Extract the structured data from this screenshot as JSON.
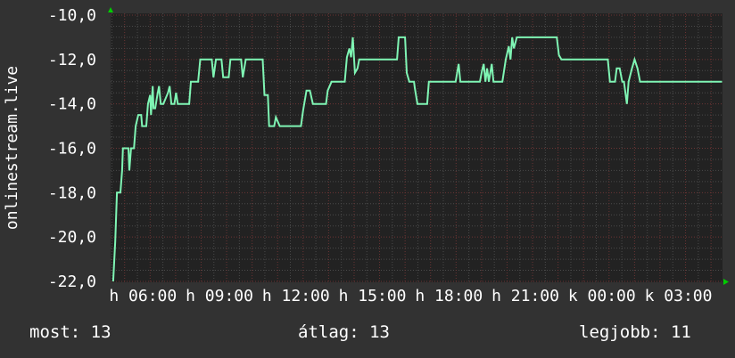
{
  "chart_data": {
    "type": "line",
    "ylabel": "onlinestream.live",
    "ylim": [
      -22,
      -10
    ],
    "xlim": [
      "04:27",
      "04:27"
    ],
    "y_ticks": [
      "-10,0",
      "-12,0",
      "-14,0",
      "-16,0",
      "-18,0",
      "-20,0",
      "-22,0"
    ],
    "x_ticks": [
      {
        "time": "06:00",
        "label": "h 06:00"
      },
      {
        "time": "09:00",
        "label": "h 09:00"
      },
      {
        "time": "12:00",
        "label": "h 12:00"
      },
      {
        "time": "15:00",
        "label": "h 15:00"
      },
      {
        "time": "18:00",
        "label": "h 18:00"
      },
      {
        "time": "21:00",
        "label": "h 21:00"
      },
      {
        "time": "00:00",
        "label": "k 00:00"
      },
      {
        "time": "03:00",
        "label": "k 03:00"
      }
    ],
    "grid": true,
    "colors": {
      "background": "#323232",
      "plot": "#222222",
      "line": "#7ff5b4",
      "major_grid": "#6b3434",
      "minor_grid": "#4a4a4a",
      "arrow": "#00cc00"
    },
    "series": [
      {
        "points": [
          [
            "04:33",
            -22
          ],
          [
            "04:38",
            -20.2
          ],
          [
            "04:42",
            -18
          ],
          [
            "04:50",
            -18
          ],
          [
            "04:54",
            -17
          ],
          [
            "04:56",
            -16
          ],
          [
            "05:09",
            -16
          ],
          [
            "05:11",
            -17
          ],
          [
            "05:15",
            -16
          ],
          [
            "05:22",
            -16
          ],
          [
            "05:26",
            -15
          ],
          [
            "05:32",
            -14.5
          ],
          [
            "05:39",
            -14.5
          ],
          [
            "05:41",
            -15
          ],
          [
            "05:51",
            -15
          ],
          [
            "05:55",
            -14
          ],
          [
            "06:00",
            -13.6
          ],
          [
            "06:02",
            -14.5
          ],
          [
            "06:06",
            -13.2
          ],
          [
            "06:08",
            -14.2
          ],
          [
            "06:12",
            -14.2
          ],
          [
            "06:17",
            -13.6
          ],
          [
            "06:21",
            -13.2
          ],
          [
            "06:25",
            -14
          ],
          [
            "06:31",
            -14
          ],
          [
            "06:42",
            -13.5
          ],
          [
            "06:46",
            -13.2
          ],
          [
            "06:50",
            -14
          ],
          [
            "06:57",
            -14
          ],
          [
            "07:01",
            -13.5
          ],
          [
            "07:05",
            -14
          ],
          [
            "07:32",
            -14
          ],
          [
            "07:36",
            -13
          ],
          [
            "07:53",
            -13
          ],
          [
            "07:58",
            -12
          ],
          [
            "08:25",
            -12
          ],
          [
            "08:29",
            -12.8
          ],
          [
            "08:35",
            -12
          ],
          [
            "08:48",
            -12
          ],
          [
            "08:52",
            -12.8
          ],
          [
            "09:05",
            -12.8
          ],
          [
            "09:09",
            -12
          ],
          [
            "09:34",
            -12
          ],
          [
            "09:38",
            -12.8
          ],
          [
            "09:45",
            -12
          ],
          [
            "10:25",
            -12
          ],
          [
            "10:29",
            -13.6
          ],
          [
            "10:37",
            -13.6
          ],
          [
            "10:40",
            -15
          ],
          [
            "10:52",
            -15
          ],
          [
            "10:56",
            -14.6
          ],
          [
            "11:05",
            -15
          ],
          [
            "11:55",
            -15
          ],
          [
            "12:00",
            -14.3
          ],
          [
            "12:08",
            -13.4
          ],
          [
            "12:16",
            -13.4
          ],
          [
            "12:23",
            -14
          ],
          [
            "12:54",
            -14
          ],
          [
            "12:58",
            -13.4
          ],
          [
            "13:07",
            -13
          ],
          [
            "13:38",
            -13
          ],
          [
            "13:43",
            -11.9
          ],
          [
            "13:49",
            -11.5
          ],
          [
            "13:53",
            -11.9
          ],
          [
            "13:57",
            -11
          ],
          [
            "14:02",
            -12.6
          ],
          [
            "14:08",
            -12.4
          ],
          [
            "14:12",
            -12
          ],
          [
            "15:41",
            -12
          ],
          [
            "15:45",
            -11
          ],
          [
            "16:00",
            -11
          ],
          [
            "16:04",
            -12.6
          ],
          [
            "16:10",
            -13
          ],
          [
            "16:21",
            -13
          ],
          [
            "16:23",
            -13.3
          ],
          [
            "16:29",
            -14
          ],
          [
            "16:52",
            -14
          ],
          [
            "16:56",
            -13
          ],
          [
            "17:59",
            -13
          ],
          [
            "18:06",
            -12.2
          ],
          [
            "18:10",
            -13
          ],
          [
            "18:56",
            -13
          ],
          [
            "19:01",
            -12.5
          ],
          [
            "19:05",
            -12.2
          ],
          [
            "19:09",
            -13
          ],
          [
            "19:13",
            -12.4
          ],
          [
            "19:17",
            -13
          ],
          [
            "19:24",
            -12.2
          ],
          [
            "19:28",
            -13
          ],
          [
            "19:49",
            -13
          ],
          [
            "19:57",
            -12
          ],
          [
            "20:04",
            -11.4
          ],
          [
            "20:08",
            -12
          ],
          [
            "20:12",
            -11
          ],
          [
            "20:16",
            -11.5
          ],
          [
            "20:23",
            -11
          ],
          [
            "21:57",
            -11
          ],
          [
            "22:02",
            -11.8
          ],
          [
            "22:08",
            -12
          ],
          [
            "23:57",
            -12
          ],
          [
            "00:02",
            -13
          ],
          [
            "00:14",
            -13
          ],
          [
            "00:18",
            -12.4
          ],
          [
            "00:25",
            -12.4
          ],
          [
            "00:31",
            -13
          ],
          [
            "00:35",
            -13
          ],
          [
            "00:42",
            -14
          ],
          [
            "00:46",
            -13
          ],
          [
            "00:54",
            -12.4
          ],
          [
            "01:00",
            -12
          ],
          [
            "01:07",
            -12.4
          ],
          [
            "01:13",
            -13
          ],
          [
            "04:27",
            -13
          ]
        ]
      }
    ]
  },
  "legend": {
    "current": "most: 13",
    "average": "átlag: 13",
    "best": "legjobb: 11"
  }
}
